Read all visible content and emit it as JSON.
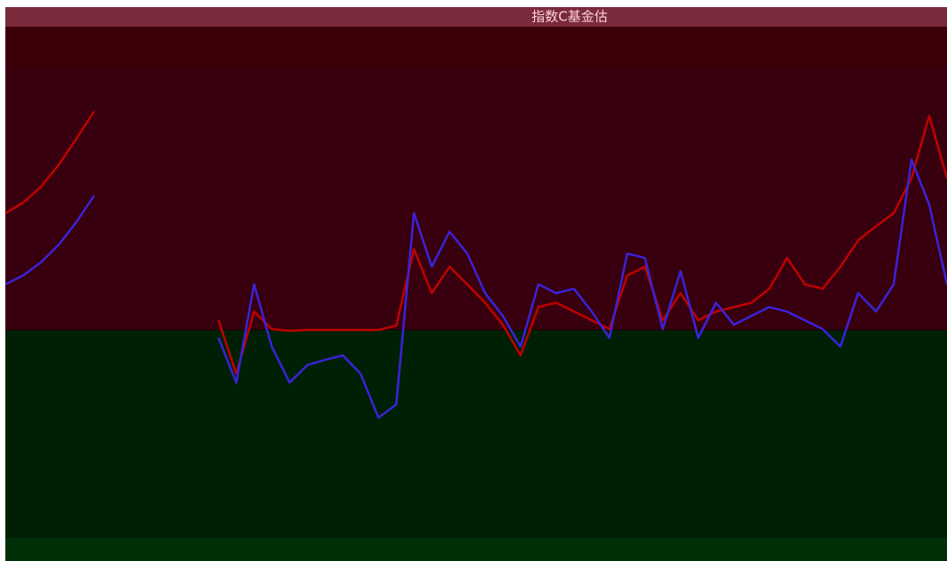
{
  "chart_data": {
    "type": "line",
    "title": "指数C基金估",
    "ylim": [
      -24,
      30
    ],
    "series": [
      {
        "color": "#c00000",
        "values": [
          13.3,
          14.5,
          16.3,
          18.8,
          21.8,
          24.9,
          null,
          null,
          null,
          null,
          null,
          null,
          1.1,
          -5,
          2.1,
          0.1,
          -0.1,
          0,
          0,
          0,
          0,
          0,
          0.5,
          9.2,
          4.2,
          7.2,
          5.2,
          3.1,
          0.6,
          -2.9,
          2.6,
          3.1,
          2.1,
          1.1,
          0.1,
          6.2,
          7.2,
          1.1,
          4.2,
          1.1,
          2.1,
          2.6,
          3.1,
          4.7,
          8.2,
          5.2,
          4.7,
          7.2,
          10.2,
          11.8,
          13.3,
          17.3,
          24.4,
          17.3
        ]
      },
      {
        "color": "#3a22d8",
        "values": [
          5.2,
          6.2,
          7.7,
          9.7,
          12.3,
          15.3,
          null,
          null,
          null,
          null,
          null,
          null,
          -0.9,
          -6,
          5.2,
          -1.9,
          -6,
          -4,
          -3.4,
          -2.9,
          -5,
          -10,
          -8.5,
          13.3,
          7.2,
          11.2,
          8.7,
          4.2,
          1.6,
          -1.9,
          5.2,
          4.2,
          4.7,
          2.1,
          -0.9,
          8.7,
          8.2,
          0.1,
          6.7,
          -0.9,
          3.1,
          0.6,
          1.6,
          2.6,
          2.1,
          1.1,
          0.1,
          -1.9,
          4.2,
          2.1,
          5.2,
          19.4,
          14.3,
          5.2
        ]
      }
    ]
  }
}
